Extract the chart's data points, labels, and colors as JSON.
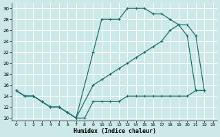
{
  "xlabel": "Humidex (Indice chaleur)",
  "bg_color": "#cce8e8",
  "grid_color": "#ffffff",
  "line_color": "#1a6e6a",
  "xlim": [
    -0.5,
    23.5
  ],
  "ylim": [
    9.5,
    31.0
  ],
  "xticks": [
    0,
    1,
    2,
    3,
    4,
    5,
    6,
    7,
    8,
    9,
    10,
    11,
    12,
    13,
    14,
    15,
    16,
    17,
    18,
    19,
    20,
    21,
    22,
    23
  ],
  "yticks": [
    10,
    12,
    14,
    16,
    18,
    20,
    22,
    24,
    26,
    28,
    30
  ],
  "curve1_x": [
    0,
    1,
    2,
    3,
    4,
    5,
    6,
    7,
    9,
    10,
    11,
    12,
    13,
    14,
    15,
    16,
    17,
    18,
    19,
    20,
    21,
    22
  ],
  "curve1_y": [
    15,
    14,
    14,
    13,
    12,
    12,
    11,
    10,
    22,
    28,
    28,
    28,
    30,
    30,
    30,
    29,
    29,
    28,
    27,
    25,
    15,
    15
  ],
  "curve2_x": [
    0,
    1,
    2,
    3,
    4,
    5,
    6,
    7,
    9,
    10,
    11,
    12,
    13,
    14,
    15,
    16,
    17,
    18,
    19,
    20,
    21,
    22
  ],
  "curve2_y": [
    15,
    14,
    14,
    13,
    12,
    12,
    11,
    10,
    16,
    17,
    18,
    19,
    20,
    21,
    22,
    23,
    24,
    26,
    27,
    27,
    25,
    15
  ],
  "curve3_x": [
    0,
    1,
    2,
    3,
    4,
    5,
    6,
    7,
    8,
    9,
    10,
    11,
    12,
    13,
    14,
    15,
    16,
    17,
    18,
    19,
    20,
    21,
    22
  ],
  "curve3_y": [
    15,
    14,
    14,
    13,
    12,
    12,
    11,
    10,
    10,
    13,
    13,
    13,
    13,
    14,
    14,
    14,
    14,
    14,
    14,
    14,
    14,
    15,
    15
  ]
}
